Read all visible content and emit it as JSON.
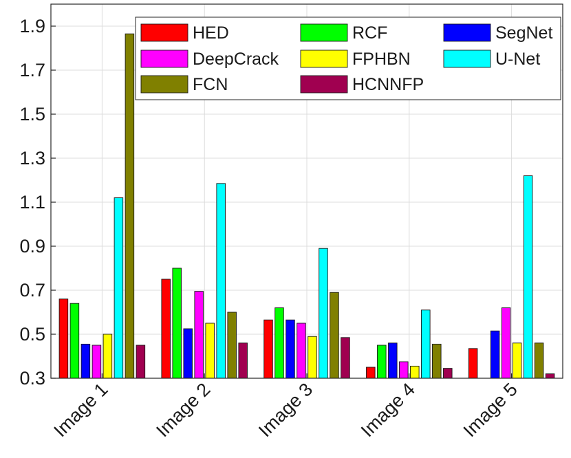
{
  "chart_data": {
    "type": "bar",
    "title": "",
    "xlabel": "",
    "ylabel": "",
    "categories": [
      "Image 1",
      "Image 2",
      "Image 3",
      "Image 4",
      "Image 5"
    ],
    "ylim": [
      0.3,
      2.0
    ],
    "yticks": [
      0.3,
      0.5,
      0.7,
      0.9,
      1.1,
      1.3,
      1.5,
      1.7,
      1.9
    ],
    "ytick_labels": [
      "0.3",
      "0.5",
      "0.7",
      "0.9",
      "1.1",
      "1.3",
      "1.5",
      "1.7",
      "1.9"
    ],
    "grid": true,
    "legend_position": "top-right",
    "series": [
      {
        "name": "HED",
        "color": "#ff0000",
        "values": [
          0.66,
          0.75,
          0.565,
          0.35,
          0.435
        ]
      },
      {
        "name": "RCF",
        "color": "#00ff00",
        "values": [
          0.64,
          0.8,
          0.62,
          0.45,
          0.3
        ]
      },
      {
        "name": "SegNet",
        "color": "#0000ff",
        "values": [
          0.455,
          0.525,
          0.565,
          0.46,
          0.515
        ]
      },
      {
        "name": "DeepCrack",
        "color": "#ff00ff",
        "values": [
          0.45,
          0.695,
          0.55,
          0.375,
          0.62
        ]
      },
      {
        "name": "FPHBN",
        "color": "#ffff00",
        "values": [
          0.5,
          0.55,
          0.49,
          0.355,
          0.46
        ]
      },
      {
        "name": "U-Net",
        "color": "#00ffff",
        "values": [
          1.12,
          1.185,
          0.89,
          0.61,
          1.22
        ]
      },
      {
        "name": "FCN",
        "color": "#808000",
        "values": [
          1.865,
          0.6,
          0.69,
          0.455,
          0.46
        ]
      },
      {
        "name": "HCNNFP",
        "color": "#a00050",
        "values": [
          0.45,
          0.46,
          0.485,
          0.345,
          0.32
        ]
      }
    ]
  }
}
